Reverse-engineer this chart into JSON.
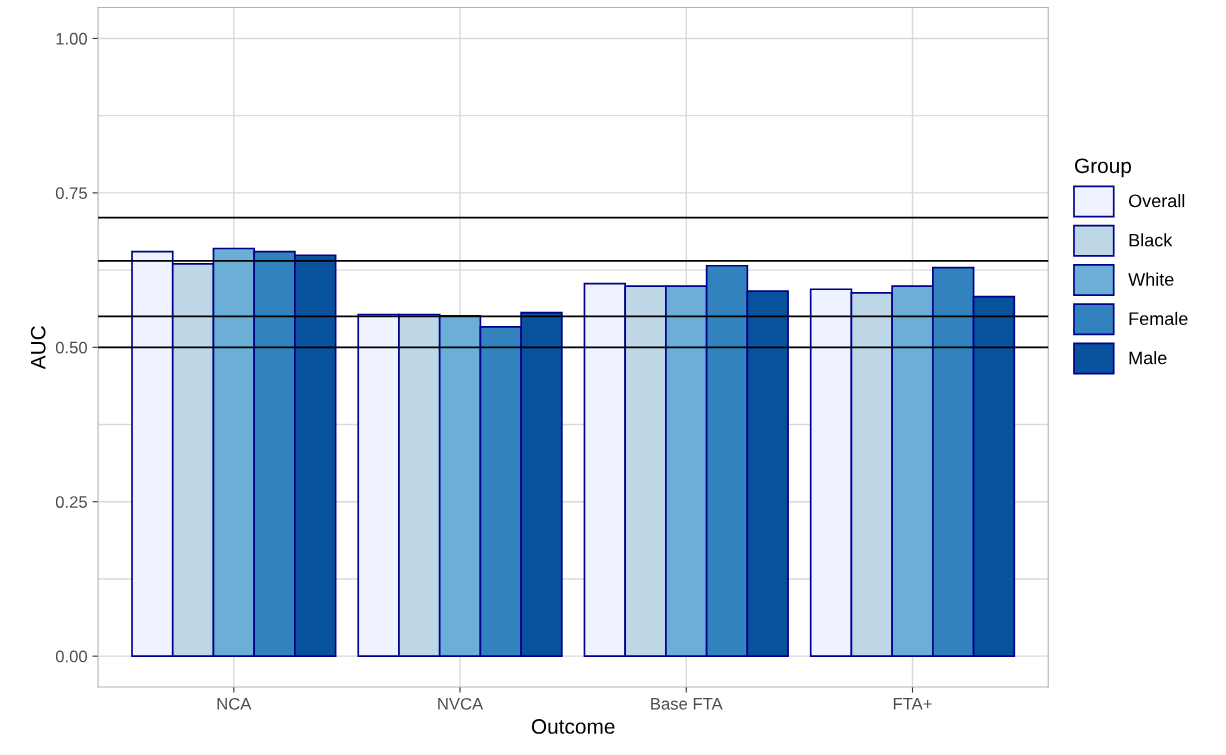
{
  "chart_data": {
    "type": "bar",
    "xlabel": "Outcome",
    "ylabel": "AUC",
    "legend_title": "Group",
    "categories": [
      "NCA",
      "NVCA",
      "Base FTA",
      "FTA+"
    ],
    "series": [
      {
        "name": "Overall",
        "color": "#eff3ff",
        "values": [
          0.655,
          0.553,
          0.603,
          0.594
        ]
      },
      {
        "name": "Black",
        "color": "#bdd7e7",
        "values": [
          0.635,
          0.553,
          0.599,
          0.588
        ]
      },
      {
        "name": "White",
        "color": "#6baed6",
        "values": [
          0.66,
          0.551,
          0.599,
          0.599
        ]
      },
      {
        "name": "Female",
        "color": "#3182bd",
        "values": [
          0.655,
          0.533,
          0.632,
          0.629
        ]
      },
      {
        "name": "Male",
        "color": "#08519c",
        "values": [
          0.649,
          0.556,
          0.591,
          0.582
        ]
      }
    ],
    "ylim": [
      -0.05,
      1.05
    ],
    "yticks": [
      {
        "value": 0,
        "label": "0.00"
      },
      {
        "value": 0.125,
        "label": null
      },
      {
        "value": 0.25,
        "label": "0.25"
      },
      {
        "value": 0.375,
        "label": null
      },
      {
        "value": 0.5,
        "label": "0.50"
      },
      {
        "value": 0.625,
        "label": null
      },
      {
        "value": 0.75,
        "label": "0.75"
      },
      {
        "value": 0.875,
        "label": null
      },
      {
        "value": 1,
        "label": "1.00"
      }
    ],
    "ref_lines": [
      {
        "axis": "y",
        "value": 0.71,
        "color": "#000000"
      },
      {
        "axis": "y",
        "value": 0.64,
        "color": "#000000"
      },
      {
        "axis": "y",
        "value": 0.55,
        "color": "#000000"
      },
      {
        "axis": "y",
        "value": 0.5,
        "color": "#000000"
      }
    ],
    "grid": true,
    "legend": "right"
  }
}
